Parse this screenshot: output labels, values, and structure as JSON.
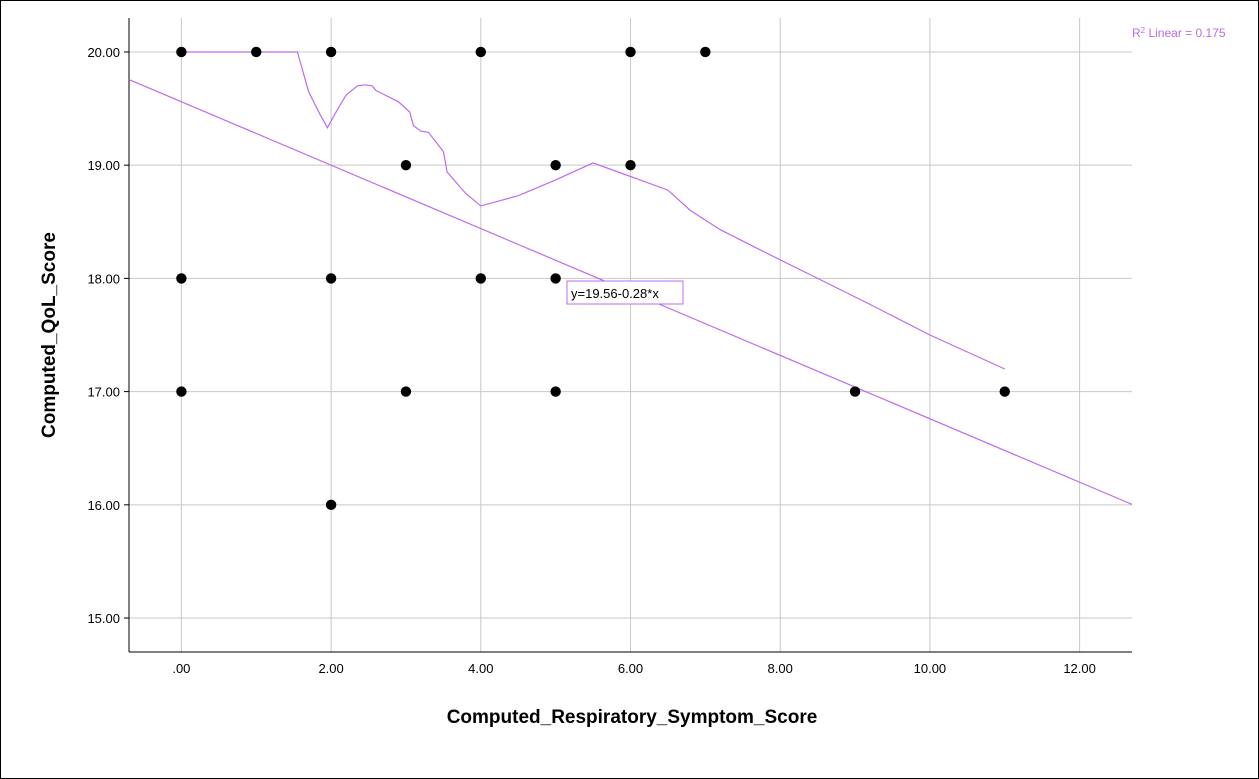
{
  "chart_data": {
    "type": "scatter",
    "xlabel": "Computed_Respiratory_Symptom_Score",
    "ylabel": "Computed_QoL_Score",
    "xlim": [
      -0.7,
      12.7
    ],
    "ylim": [
      14.7,
      20.3
    ],
    "xticks": [
      0,
      2,
      4,
      6,
      8,
      10,
      12
    ],
    "xtick_labels": [
      ".00",
      "2.00",
      "4.00",
      "6.00",
      "8.00",
      "10.00",
      "12.00"
    ],
    "yticks": [
      15,
      16,
      17,
      18,
      19,
      20
    ],
    "ytick_labels": [
      "15.00",
      "16.00",
      "17.00",
      "18.00",
      "19.00",
      "20.00"
    ],
    "grid": true,
    "points": [
      {
        "x": 0,
        "y": 20
      },
      {
        "x": 1,
        "y": 20
      },
      {
        "x": 2,
        "y": 20
      },
      {
        "x": 4,
        "y": 20
      },
      {
        "x": 6,
        "y": 20
      },
      {
        "x": 7,
        "y": 20
      },
      {
        "x": 3,
        "y": 19
      },
      {
        "x": 5,
        "y": 19
      },
      {
        "x": 6,
        "y": 19
      },
      {
        "x": 0,
        "y": 18
      },
      {
        "x": 2,
        "y": 18
      },
      {
        "x": 4,
        "y": 18
      },
      {
        "x": 5,
        "y": 18
      },
      {
        "x": 0,
        "y": 17
      },
      {
        "x": 3,
        "y": 17
      },
      {
        "x": 5,
        "y": 17
      },
      {
        "x": 9,
        "y": 17
      },
      {
        "x": 11,
        "y": 17
      },
      {
        "x": 2,
        "y": 16
      }
    ],
    "fit_line": {
      "type": "linear",
      "intercept": 19.56,
      "slope": -0.28,
      "equation_label": "y=19.56-0.28*x",
      "r2_label_prefix": "R",
      "r2_label_sup": "2",
      "r2_label_suffix": " Linear = 0.175",
      "color": "#b96cf0"
    },
    "loess_curve": {
      "color": "#b96cf0",
      "points": [
        [
          0,
          20
        ],
        [
          1.55,
          20
        ],
        [
          1.7,
          19.65
        ],
        [
          1.85,
          19.45
        ],
        [
          1.95,
          19.33
        ],
        [
          2.05,
          19.45
        ],
        [
          2.2,
          19.62
        ],
        [
          2.35,
          19.7
        ],
        [
          2.45,
          19.71
        ],
        [
          2.55,
          19.7
        ],
        [
          2.6,
          19.66
        ],
        [
          2.75,
          19.61
        ],
        [
          2.9,
          19.56
        ],
        [
          3.05,
          19.47
        ],
        [
          3.1,
          19.35
        ],
        [
          3.2,
          19.3
        ],
        [
          3.3,
          19.29
        ],
        [
          3.5,
          19.12
        ],
        [
          3.55,
          18.94
        ],
        [
          3.8,
          18.75
        ],
        [
          4.0,
          18.64
        ],
        [
          4.5,
          18.73
        ],
        [
          5.0,
          18.87
        ],
        [
          5.5,
          19.02
        ],
        [
          6.0,
          18.9
        ],
        [
          6.5,
          18.78
        ],
        [
          6.8,
          18.6
        ],
        [
          7.2,
          18.43
        ],
        [
          7.8,
          18.23
        ],
        [
          8.5,
          18.0
        ],
        [
          9.2,
          17.77
        ],
        [
          10.0,
          17.5
        ],
        [
          11.0,
          17.2
        ]
      ]
    },
    "marker_color": "#000000"
  }
}
